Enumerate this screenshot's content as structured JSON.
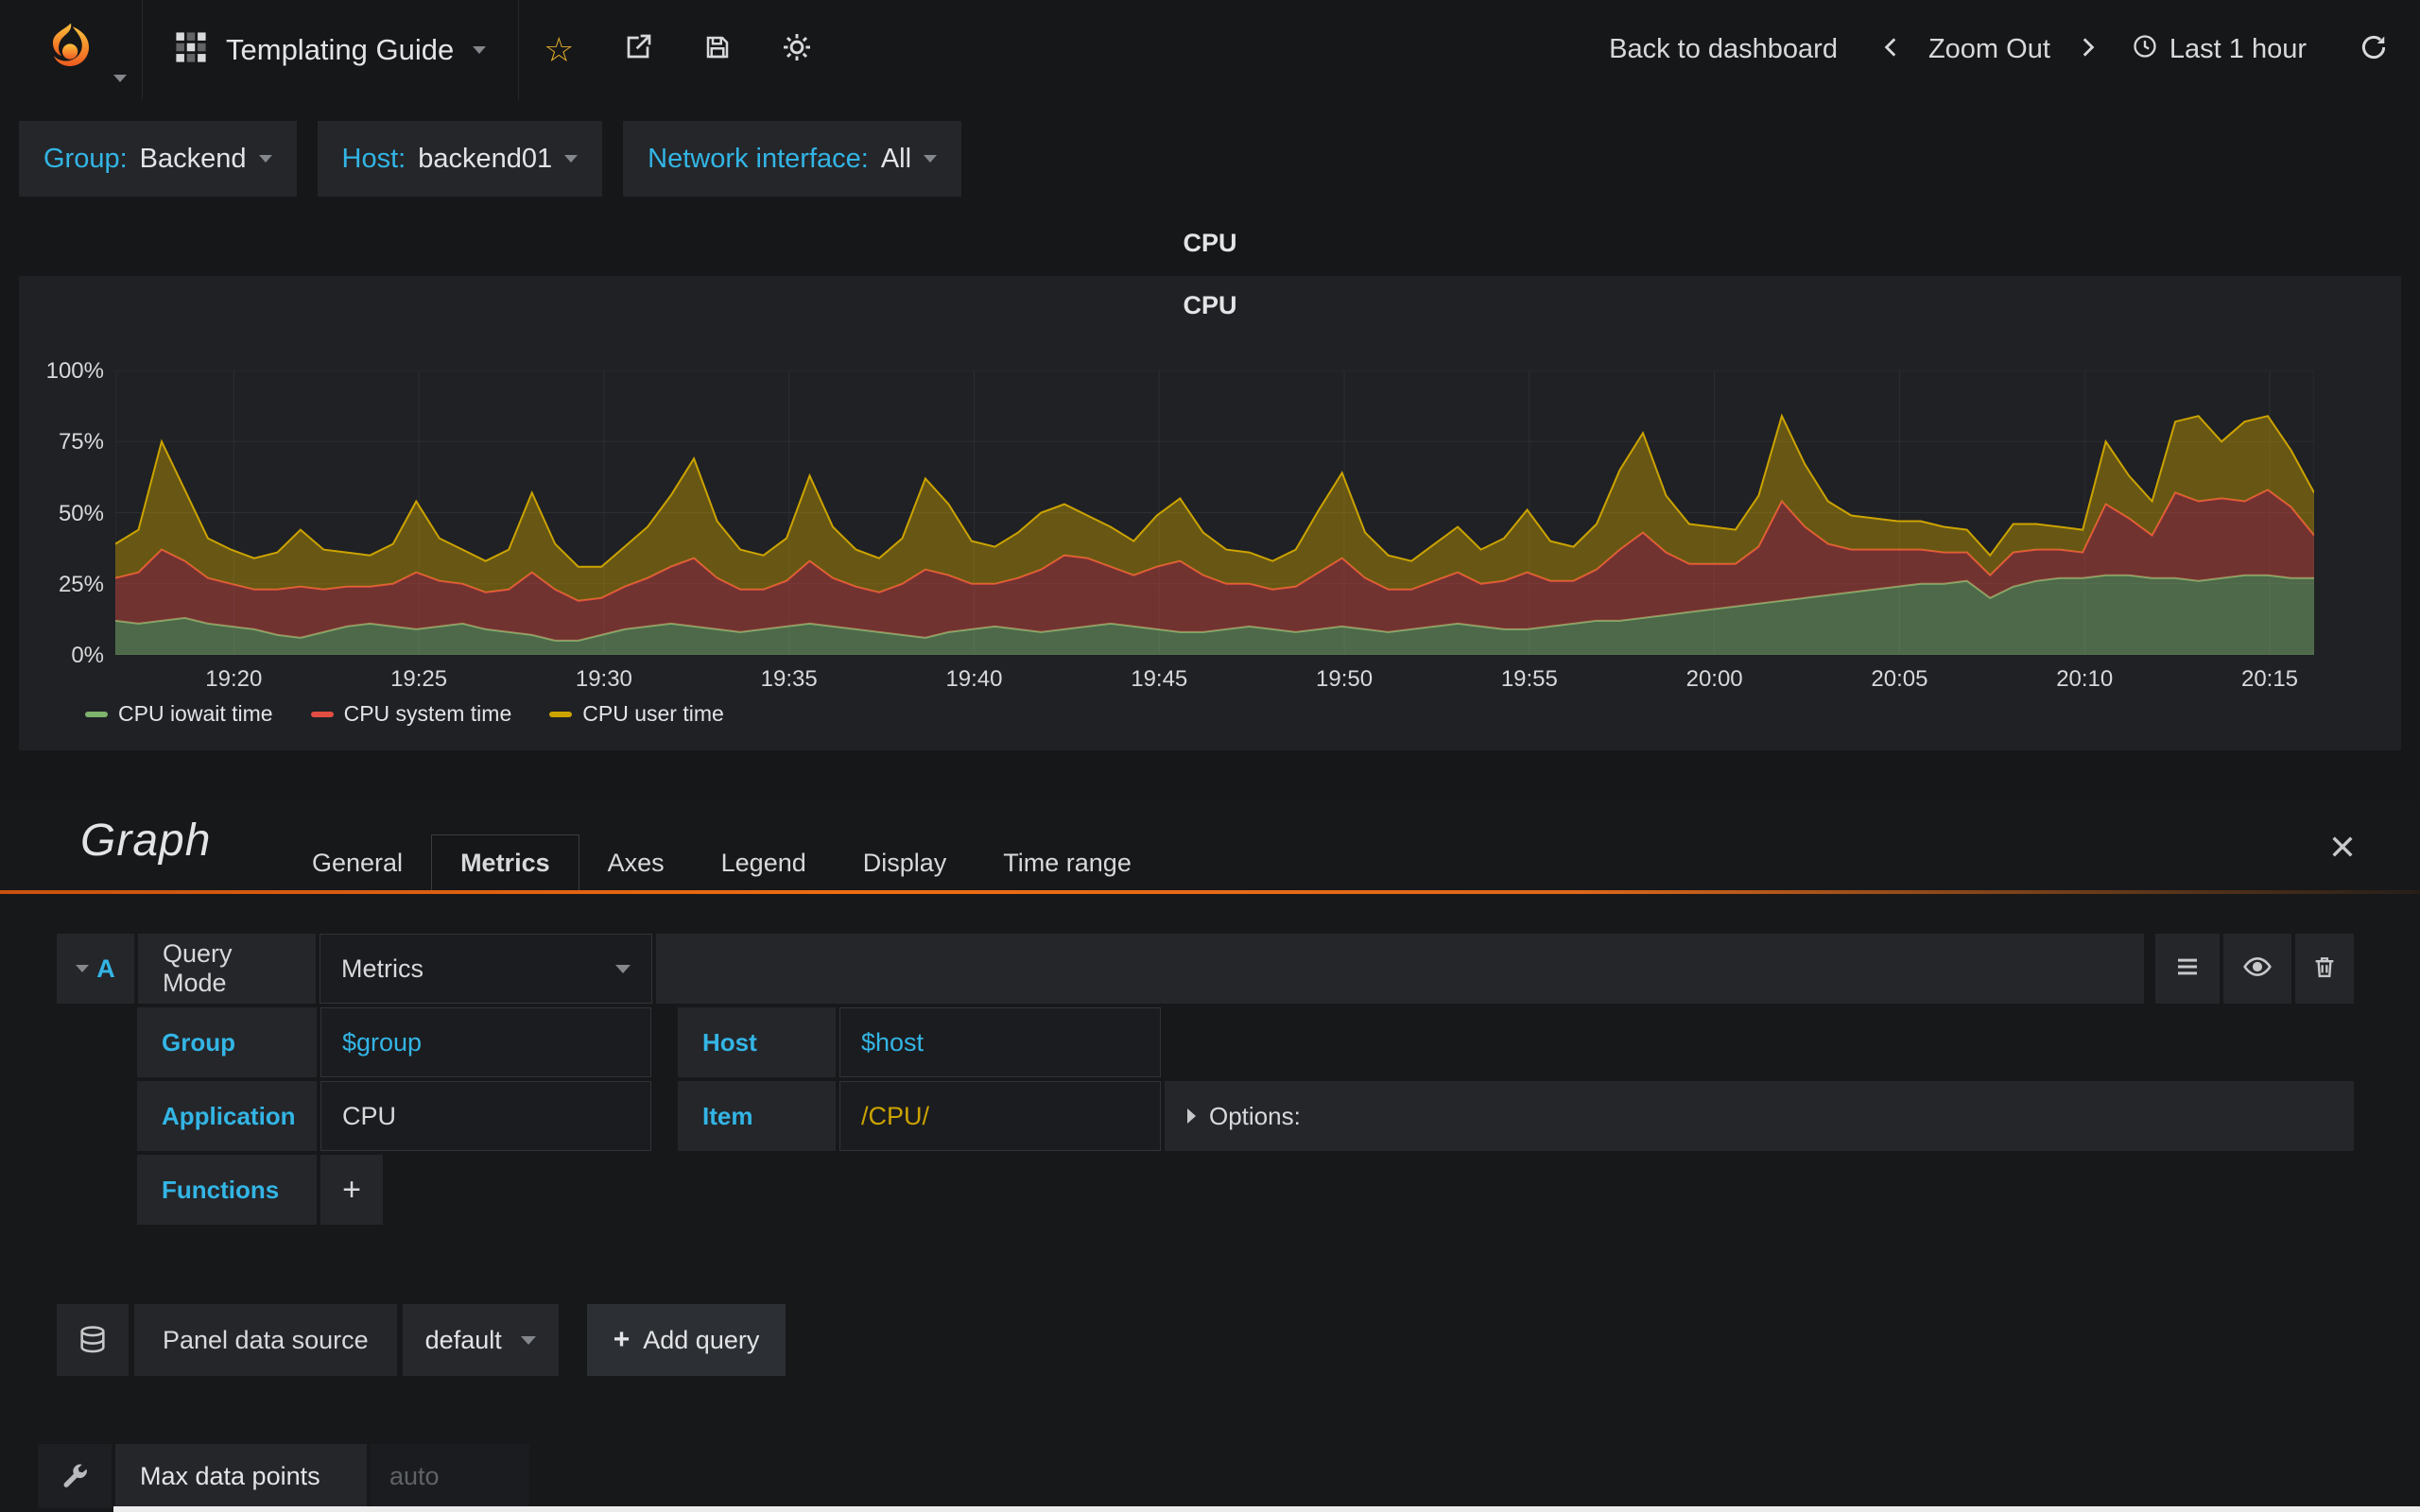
{
  "navbar": {
    "title": "Templating Guide",
    "back_to_dashboard": "Back to dashboard",
    "zoom_out": "Zoom Out",
    "time_range": "Last 1 hour"
  },
  "variables": [
    {
      "label": "Group:",
      "value": "Backend"
    },
    {
      "label": "Host:",
      "value": "backend01"
    },
    {
      "label": "Network interface:",
      "value": "All"
    }
  ],
  "panel": {
    "title": "CPU"
  },
  "chart_data": {
    "type": "area",
    "stacked": true,
    "title": "CPU",
    "xlabel": "",
    "ylabel": "",
    "ylim": [
      0,
      100
    ],
    "y_ticks": [
      "0%",
      "25%",
      "50%",
      "75%",
      "100%"
    ],
    "x_ticks": [
      "19:20",
      "19:25",
      "19:30",
      "19:35",
      "19:40",
      "19:45",
      "19:50",
      "19:55",
      "20:00",
      "20:05",
      "20:10",
      "20:15"
    ],
    "x_start": "19:17",
    "x_end": "20:16",
    "grid": true,
    "legend_position": "bottom-left",
    "series": [
      {
        "name": "CPU iowait time",
        "color": "#7eb26d",
        "fill_opacity": 0.5,
        "values": [
          12,
          11,
          12,
          13,
          11,
          10,
          9,
          7,
          6,
          8,
          10,
          11,
          10,
          9,
          10,
          11,
          9,
          8,
          7,
          5,
          5,
          7,
          9,
          10,
          11,
          10,
          9,
          8,
          9,
          10,
          11,
          10,
          9,
          8,
          7,
          6,
          8,
          9,
          10,
          9,
          8,
          9,
          10,
          11,
          10,
          9,
          8,
          8,
          9,
          10,
          9,
          8,
          9,
          10,
          9,
          8,
          9,
          10,
          11,
          10,
          9,
          9,
          10,
          11,
          12,
          12,
          13,
          14,
          15,
          16,
          17,
          18,
          19,
          20,
          21,
          22,
          23,
          24,
          25,
          25,
          26,
          20,
          24,
          26,
          27,
          27,
          28,
          28,
          27,
          27,
          26,
          27,
          28,
          28,
          27,
          27
        ]
      },
      {
        "name": "CPU system time",
        "color": "#e24d42",
        "fill_opacity": 0.42,
        "values": [
          15,
          18,
          25,
          20,
          16,
          15,
          14,
          16,
          18,
          15,
          14,
          13,
          15,
          20,
          16,
          14,
          13,
          15,
          22,
          18,
          14,
          13,
          15,
          17,
          20,
          24,
          18,
          15,
          14,
          16,
          22,
          17,
          15,
          14,
          18,
          24,
          20,
          16,
          15,
          18,
          22,
          26,
          24,
          20,
          18,
          22,
          25,
          20,
          16,
          15,
          14,
          16,
          20,
          24,
          18,
          15,
          14,
          16,
          18,
          15,
          17,
          20,
          16,
          15,
          18,
          25,
          30,
          22,
          17,
          16,
          15,
          20,
          35,
          25,
          18,
          15,
          14,
          13,
          12,
          11,
          10,
          8,
          12,
          11,
          10,
          9,
          25,
          20,
          15,
          30,
          28,
          28,
          26,
          30,
          25,
          15
        ]
      },
      {
        "name": "CPU user time",
        "color": "#cca300",
        "fill_opacity": 0.42,
        "values": [
          12,
          15,
          38,
          25,
          14,
          12,
          11,
          13,
          20,
          14,
          12,
          11,
          14,
          25,
          15,
          12,
          11,
          14,
          28,
          16,
          12,
          11,
          14,
          18,
          25,
          35,
          20,
          14,
          12,
          15,
          30,
          18,
          13,
          12,
          16,
          32,
          25,
          15,
          13,
          16,
          20,
          18,
          15,
          14,
          12,
          18,
          22,
          15,
          12,
          11,
          10,
          13,
          22,
          30,
          16,
          12,
          10,
          13,
          16,
          12,
          15,
          22,
          14,
          12,
          16,
          28,
          35,
          20,
          14,
          13,
          12,
          18,
          30,
          22,
          15,
          12,
          11,
          10,
          10,
          9,
          8,
          7,
          10,
          9,
          8,
          8,
          22,
          15,
          12,
          25,
          30,
          20,
          28,
          26,
          20,
          15
        ]
      }
    ]
  },
  "editor": {
    "panel_type": "Graph",
    "tabs": [
      {
        "label": "General",
        "active": false
      },
      {
        "label": "Metrics",
        "active": true
      },
      {
        "label": "Axes",
        "active": false
      },
      {
        "label": "Legend",
        "active": false
      },
      {
        "label": "Display",
        "active": false
      },
      {
        "label": "Time range",
        "active": false
      }
    ],
    "query": {
      "letter": "A",
      "mode_label": "Query Mode",
      "mode_value": "Metrics",
      "group_label": "Group",
      "group_value": "$group",
      "host_label": "Host",
      "host_value": "$host",
      "app_label": "Application",
      "app_value": "CPU",
      "item_label": "Item",
      "item_value": "/CPU/",
      "options_label": "Options:",
      "functions_label": "Functions",
      "add_function": "+"
    },
    "datasource": {
      "label": "Panel data source",
      "value": "default",
      "add_query": "Add query",
      "add_plus": "+"
    },
    "footer": {
      "label": "Max data points",
      "placeholder": "auto"
    }
  },
  "icons": {
    "grafana-logo": "flame",
    "dashboard-icon": "checker-grid",
    "star-icon": "☆",
    "share-icon": "arrow-out-of-box",
    "save-icon": "floppy-disk",
    "settings-icon": "gear",
    "chevron-left-icon": "❮",
    "chevron-right-icon": "❯",
    "clock-icon": "clock",
    "refresh-icon": "circular-arrow",
    "collapse-caret-icon": "▾",
    "menu-icon": "hamburger",
    "eye-icon": "eye",
    "trash-icon": "trash-can",
    "database-icon": "db-cylinders",
    "wrench-icon": "wrench",
    "close-icon": "✕",
    "plus-icon": "+",
    "options-caret-icon": "▸"
  },
  "colors": {
    "accent_cyan": "#33b5e5",
    "orange": "#ef6c12",
    "yellow_text": "#cca300",
    "series_green": "#7eb26d",
    "series_red": "#e24d42",
    "series_yellow": "#cca300",
    "panel_bg": "#1f2124",
    "body_bg": "#161719"
  }
}
